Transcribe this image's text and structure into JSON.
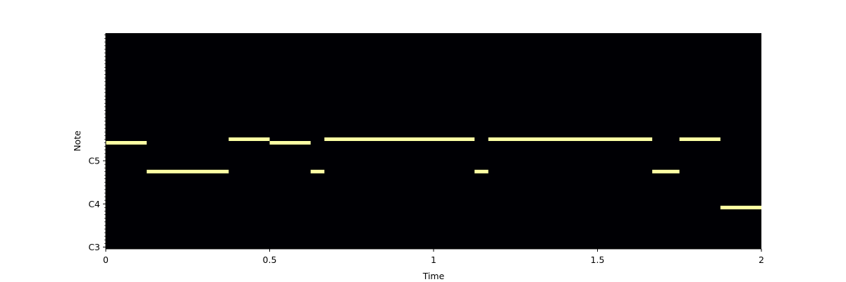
{
  "chart_data": {
    "type": "heatmap",
    "title": "",
    "xlabel": "Time",
    "ylabel": "Note",
    "xlim": [
      0,
      2
    ],
    "ylim_midi": [
      48,
      107
    ],
    "x_ticks": [
      {
        "value": 0,
        "label": "0"
      },
      {
        "value": 0.5,
        "label": "0.5"
      },
      {
        "value": 1,
        "label": "1"
      },
      {
        "value": 1.5,
        "label": "1.5"
      },
      {
        "value": 2,
        "label": "2"
      }
    ],
    "y_ticks": [
      {
        "midi": 48,
        "label": "C3"
      },
      {
        "midi": 60,
        "label": "C4"
      },
      {
        "midi": 72,
        "label": "C5"
      }
    ],
    "background_color": "#000004",
    "note_color": "#fcffa4",
    "notes": [
      {
        "start": 0.0,
        "end": 0.125,
        "midi": 77
      },
      {
        "start": 0.125,
        "end": 0.375,
        "midi": 69
      },
      {
        "start": 0.375,
        "end": 0.5,
        "midi": 78
      },
      {
        "start": 0.5,
        "end": 0.625,
        "midi": 77
      },
      {
        "start": 0.625,
        "end": 0.667,
        "midi": 69
      },
      {
        "start": 0.667,
        "end": 1.125,
        "midi": 78
      },
      {
        "start": 1.125,
        "end": 1.167,
        "midi": 69
      },
      {
        "start": 1.167,
        "end": 1.667,
        "midi": 78
      },
      {
        "start": 1.667,
        "end": 1.75,
        "midi": 69
      },
      {
        "start": 1.75,
        "end": 1.875,
        "midi": 78
      },
      {
        "start": 1.875,
        "end": 2.0,
        "midi": 59
      }
    ]
  }
}
